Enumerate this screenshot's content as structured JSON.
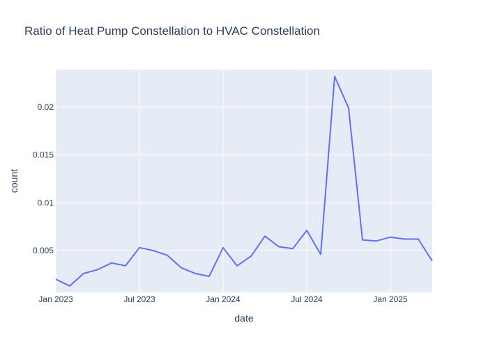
{
  "chart_data": {
    "type": "line",
    "title": "Ratio of Heat Pump Constellation to HVAC Constellation",
    "xlabel": "date",
    "ylabel": "count",
    "x_ticks": [
      "Jan 2023",
      "Jul 2023",
      "Jan 2024",
      "Jul 2024",
      "Jan 2025"
    ],
    "y_ticks": [
      "0.005",
      "0.01",
      "0.015",
      "0.02"
    ],
    "ylim": [
      0.00063,
      0.02392
    ],
    "grid": true,
    "series": [
      {
        "color": "#636efa",
        "x": [
          "2023-01",
          "2023-02",
          "2023-03",
          "2023-04",
          "2023-05",
          "2023-06",
          "2023-07",
          "2023-08",
          "2023-09",
          "2023-10",
          "2023-11",
          "2023-12",
          "2024-01",
          "2024-02",
          "2024-03",
          "2024-04",
          "2024-05",
          "2024-06",
          "2024-07",
          "2024-08",
          "2024-09",
          "2024-10",
          "2024-11",
          "2024-12",
          "2025-01",
          "2025-02",
          "2025-03",
          "2025-04"
        ],
        "values": [
          0.002,
          0.0013,
          0.0026,
          0.003,
          0.0037,
          0.0034,
          0.0053,
          0.005,
          0.0045,
          0.0032,
          0.0026,
          0.0023,
          0.0053,
          0.0034,
          0.0044,
          0.0065,
          0.0054,
          0.0052,
          0.0071,
          0.0046,
          0.0232,
          0.0199,
          0.0061,
          0.006,
          0.0064,
          0.0062,
          0.0062,
          0.0039
        ]
      }
    ]
  }
}
